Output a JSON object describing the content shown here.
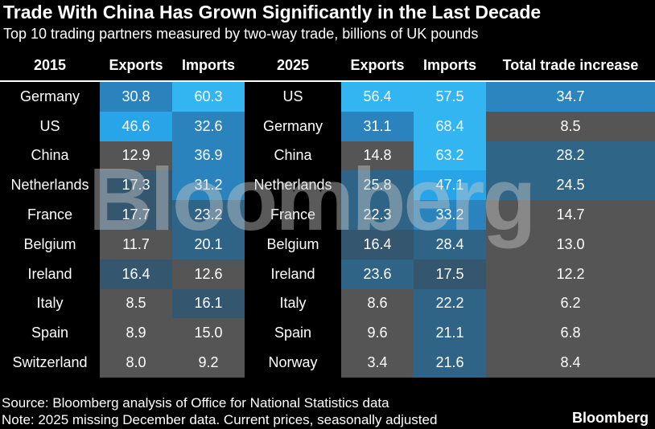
{
  "header": {
    "title": "Trade With China Has Grown Significantly in the Last Decade",
    "subtitle": "Top 10 trading partners measured by two-way trade, billions of UK pounds"
  },
  "table": {
    "columns": [
      "2015",
      "Exports",
      "Imports",
      "2025",
      "Exports",
      "Imports",
      "Total trade increase"
    ],
    "rows": [
      [
        "Germany",
        "30.8",
        "60.3",
        "US",
        "56.4",
        "57.5",
        "34.7"
      ],
      [
        "US",
        "46.6",
        "32.6",
        "Germany",
        "31.1",
        "68.4",
        "8.5"
      ],
      [
        "China",
        "12.9",
        "36.9",
        "China",
        "14.8",
        "63.2",
        "28.2"
      ],
      [
        "Netherlands",
        "17.3",
        "31.2",
        "Netherlands",
        "25.8",
        "47.1",
        "24.5"
      ],
      [
        "France",
        "17.7",
        "23.2",
        "France",
        "22.3",
        "33.2",
        "14.7"
      ],
      [
        "Belgium",
        "11.7",
        "20.1",
        "Belgium",
        "16.4",
        "28.4",
        "13.0"
      ],
      [
        "Ireland",
        "16.4",
        "12.6",
        "Ireland",
        "23.6",
        "17.5",
        "12.2"
      ],
      [
        "Italy",
        "8.5",
        "16.1",
        "Italy",
        "8.6",
        "22.2",
        "6.2"
      ],
      [
        "Spain",
        "8.9",
        "15.0",
        "Spain",
        "9.6",
        "21.1",
        "6.8"
      ],
      [
        "Switzerland",
        "8.0",
        "9.2",
        "Norway",
        "3.4",
        "21.6",
        "8.4"
      ]
    ]
  },
  "watermark": "Bloomberg",
  "footer": {
    "source": "Source: Bloomberg analysis of Office for National Statistics data",
    "note": "Note: 2025 missing December data. Current prices, seasonally adjusted",
    "logo": "Bloomberg"
  }
}
